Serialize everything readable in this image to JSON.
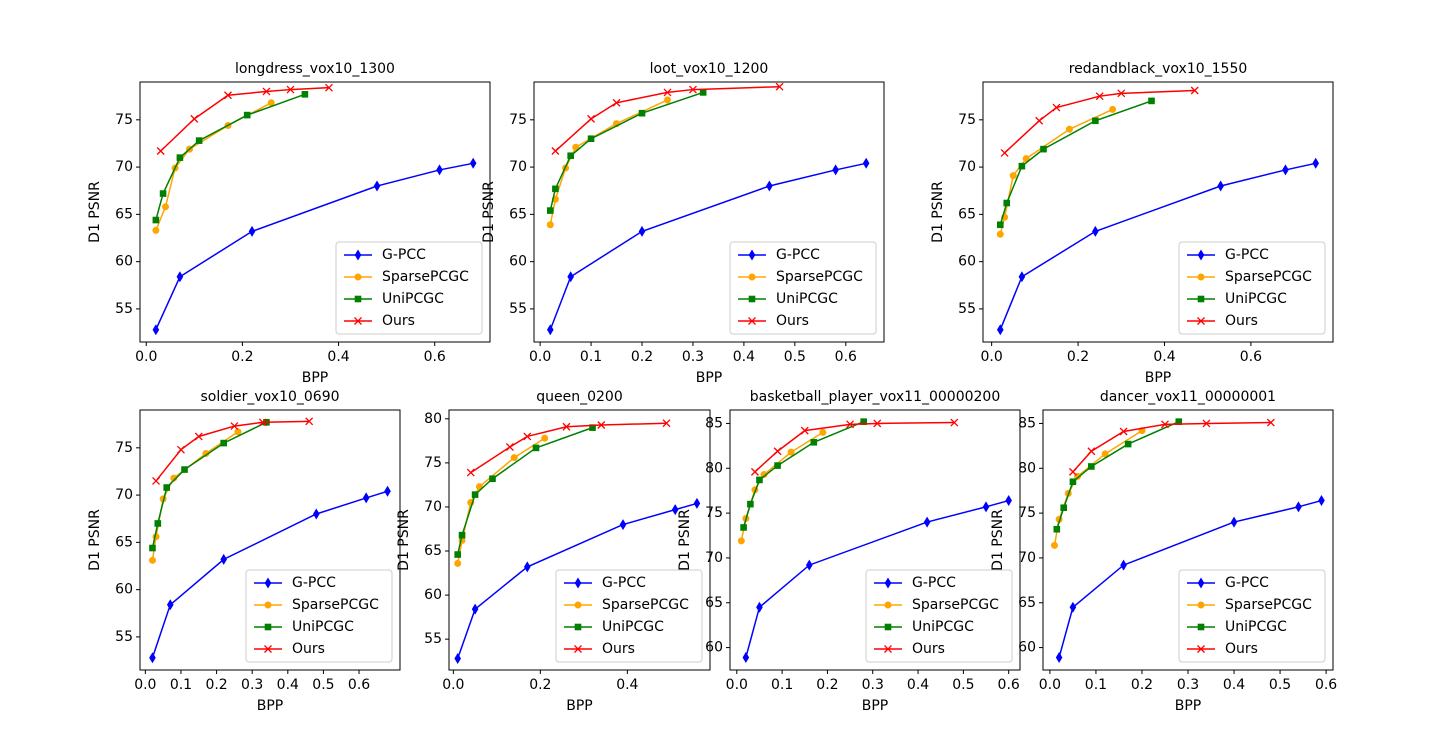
{
  "chart_data": [
    {
      "type": "line",
      "title": "longdress_vox10_1300",
      "x_label": "BPP",
      "y_label": "D1 PSNR",
      "xlim": [
        -0.013,
        0.715
      ],
      "xticks": [
        {
          "value": 0,
          "label": "0.0"
        },
        0.2,
        0.4,
        0.6
      ],
      "ylim": [
        51.5,
        79
      ],
      "yticks": [
        55,
        60,
        65,
        70,
        75
      ],
      "legend": "lower right",
      "series": [
        {
          "name": "G-PCC",
          "color": "#0000ff",
          "marker": "diamond",
          "x": [
            0.02,
            0.07,
            0.22,
            0.48,
            0.61,
            0.68
          ],
          "values": [
            52.8,
            58.4,
            63.2,
            68.0,
            69.7,
            70.4
          ]
        },
        {
          "name": "SparsePCGC",
          "color": "#ffa500",
          "marker": "circle",
          "x": [
            0.02,
            0.04,
            0.06,
            0.09,
            0.17,
            0.26
          ],
          "values": [
            63.3,
            65.8,
            69.9,
            71.9,
            74.4,
            76.8
          ]
        },
        {
          "name": "UniPCGC",
          "color": "#008000",
          "marker": "square",
          "x": [
            0.02,
            0.035,
            0.07,
            0.11,
            0.21,
            0.33
          ],
          "values": [
            64.4,
            67.2,
            71.0,
            72.8,
            75.5,
            77.7
          ]
        },
        {
          "name": "Ours",
          "color": "#ff0000",
          "marker": "x",
          "x": [
            0.03,
            0.1,
            0.17,
            0.25,
            0.3,
            0.38
          ],
          "values": [
            71.7,
            75.1,
            77.6,
            78.0,
            78.2,
            78.4
          ]
        }
      ]
    },
    {
      "type": "line",
      "title": "loot_vox10_1200",
      "x_label": "BPP",
      "y_label": "D1 PSNR",
      "xlim": [
        -0.012,
        0.675
      ],
      "xticks": [
        {
          "value": 0,
          "label": "0.0"
        },
        0.1,
        0.2,
        0.3,
        0.4,
        0.5,
        0.6
      ],
      "ylim": [
        51.5,
        79
      ],
      "yticks": [
        55,
        60,
        65,
        70,
        75
      ],
      "legend": "lower right",
      "series": [
        {
          "name": "G-PCC",
          "color": "#0000ff",
          "marker": "diamond",
          "x": [
            0.02,
            0.06,
            0.2,
            0.45,
            0.58,
            0.64
          ],
          "values": [
            52.8,
            58.4,
            63.2,
            68.0,
            69.7,
            70.4
          ]
        },
        {
          "name": "SparsePCGC",
          "color": "#ffa500",
          "marker": "circle",
          "x": [
            0.02,
            0.03,
            0.05,
            0.07,
            0.15,
            0.25
          ],
          "values": [
            63.9,
            66.6,
            69.9,
            72.1,
            74.6,
            77.1
          ]
        },
        {
          "name": "UniPCGC",
          "color": "#008000",
          "marker": "square",
          "x": [
            0.02,
            0.03,
            0.06,
            0.1,
            0.2,
            0.32
          ],
          "values": [
            65.4,
            67.7,
            71.2,
            73.0,
            75.7,
            77.9
          ]
        },
        {
          "name": "Ours",
          "color": "#ff0000",
          "marker": "x",
          "x": [
            0.03,
            0.1,
            0.15,
            0.25,
            0.3,
            0.47
          ],
          "values": [
            71.7,
            75.1,
            76.8,
            77.9,
            78.2,
            78.5
          ]
        }
      ]
    },
    {
      "type": "line",
      "title": "redandblack_vox10_1550",
      "x_label": "BPP",
      "y_label": "D1 PSNR",
      "xlim": [
        -0.02,
        0.79
      ],
      "xticks": [
        {
          "value": 0,
          "label": "0.0"
        },
        0.2,
        0.4,
        0.6
      ],
      "ylim": [
        51.5,
        79
      ],
      "yticks": [
        55,
        60,
        65,
        70,
        75
      ],
      "legend": "lower right",
      "series": [
        {
          "name": "G-PCC",
          "color": "#0000ff",
          "marker": "diamond",
          "x": [
            0.02,
            0.07,
            0.24,
            0.53,
            0.68,
            0.75
          ],
          "values": [
            52.8,
            58.4,
            63.2,
            68.0,
            69.7,
            70.4
          ]
        },
        {
          "name": "SparsePCGC",
          "color": "#ffa500",
          "marker": "circle",
          "x": [
            0.02,
            0.03,
            0.05,
            0.08,
            0.18,
            0.28
          ],
          "values": [
            62.9,
            64.7,
            69.1,
            70.9,
            74.0,
            76.1
          ]
        },
        {
          "name": "UniPCGC",
          "color": "#008000",
          "marker": "square",
          "x": [
            0.02,
            0.035,
            0.07,
            0.12,
            0.24,
            0.37
          ],
          "values": [
            63.9,
            66.2,
            70.1,
            71.9,
            74.9,
            77.0
          ]
        },
        {
          "name": "Ours",
          "color": "#ff0000",
          "marker": "x",
          "x": [
            0.03,
            0.11,
            0.15,
            0.25,
            0.3,
            0.47
          ],
          "values": [
            71.5,
            74.9,
            76.3,
            77.5,
            77.8,
            78.1
          ]
        }
      ]
    },
    {
      "type": "line",
      "title": "soldier_vox10_0690",
      "x_label": "BPP",
      "y_label": "D1 PSNR",
      "xlim": [
        -0.015,
        0.715
      ],
      "xticks": [
        {
          "value": 0,
          "label": "0.0"
        },
        0.1,
        0.2,
        0.3,
        0.4,
        0.5,
        0.6
      ],
      "ylim": [
        51.5,
        79
      ],
      "yticks": [
        55,
        60,
        65,
        70,
        75
      ],
      "legend": "lower right",
      "series": [
        {
          "name": "G-PCC",
          "color": "#0000ff",
          "marker": "diamond",
          "x": [
            0.02,
            0.07,
            0.22,
            0.48,
            0.62,
            0.68
          ],
          "values": [
            52.8,
            58.4,
            63.2,
            68.0,
            69.7,
            70.4
          ]
        },
        {
          "name": "SparsePCGC",
          "color": "#ffa500",
          "marker": "circle",
          "x": [
            0.02,
            0.03,
            0.05,
            0.08,
            0.17,
            0.26
          ],
          "values": [
            63.1,
            65.6,
            69.6,
            71.8,
            74.4,
            76.7
          ]
        },
        {
          "name": "UniPCGC",
          "color": "#008000",
          "marker": "square",
          "x": [
            0.02,
            0.035,
            0.06,
            0.11,
            0.22,
            0.34
          ],
          "values": [
            64.4,
            67.0,
            70.8,
            72.7,
            75.5,
            77.7
          ]
        },
        {
          "name": "Ours",
          "color": "#ff0000",
          "marker": "x",
          "x": [
            0.03,
            0.1,
            0.15,
            0.25,
            0.33,
            0.46
          ],
          "values": [
            71.5,
            74.8,
            76.2,
            77.3,
            77.7,
            77.8
          ]
        }
      ]
    },
    {
      "type": "line",
      "title": "queen_0200",
      "x_label": "BPP",
      "y_label": "D1 PSNR",
      "xlim": [
        -0.01,
        0.59
      ],
      "xticks": [
        {
          "value": 0,
          "label": "0.0"
        },
        0.2,
        0.4
      ],
      "ylim": [
        51.5,
        81
      ],
      "yticks": [
        55,
        60,
        65,
        70,
        75,
        80
      ],
      "legend": "lower right",
      "series": [
        {
          "name": "G-PCC",
          "color": "#0000ff",
          "marker": "diamond",
          "x": [
            0.01,
            0.05,
            0.17,
            0.39,
            0.51,
            0.56
          ],
          "values": [
            52.8,
            58.4,
            63.2,
            68.0,
            69.7,
            70.4
          ]
        },
        {
          "name": "SparsePCGC",
          "color": "#ffa500",
          "marker": "circle",
          "x": [
            0.01,
            0.02,
            0.04,
            0.06,
            0.14,
            0.21
          ],
          "values": [
            63.6,
            66.2,
            70.5,
            72.3,
            75.6,
            77.8
          ]
        },
        {
          "name": "UniPCGC",
          "color": "#008000",
          "marker": "square",
          "x": [
            0.01,
            0.02,
            0.05,
            0.09,
            0.19,
            0.32
          ],
          "values": [
            64.6,
            66.8,
            71.4,
            73.2,
            76.7,
            79.0
          ]
        },
        {
          "name": "Ours",
          "color": "#ff0000",
          "marker": "x",
          "x": [
            0.04,
            0.13,
            0.17,
            0.26,
            0.34,
            0.49
          ],
          "values": [
            73.9,
            76.8,
            78.0,
            79.1,
            79.3,
            79.5
          ]
        }
      ]
    },
    {
      "type": "line",
      "title": "basketball_player_vox11_00000200",
      "x_label": "BPP",
      "y_label": "D1 PSNR",
      "xlim": [
        -0.015,
        0.625
      ],
      "xticks": [
        {
          "value": 0,
          "label": "0.0"
        },
        0.1,
        0.2,
        0.3,
        0.4,
        0.5,
        0.6
      ],
      "ylim": [
        57.5,
        86.5
      ],
      "yticks": [
        60,
        65,
        70,
        75,
        80,
        85
      ],
      "legend": "lower right",
      "series": [
        {
          "name": "G-PCC",
          "color": "#0000ff",
          "marker": "diamond",
          "x": [
            0.02,
            0.05,
            0.16,
            0.42,
            0.55,
            0.6
          ],
          "values": [
            58.9,
            64.5,
            69.2,
            74.0,
            75.7,
            76.4
          ]
        },
        {
          "name": "SparsePCGC",
          "color": "#ffa500",
          "marker": "circle",
          "x": [
            0.01,
            0.02,
            0.04,
            0.06,
            0.12,
            0.19
          ],
          "values": [
            71.9,
            74.4,
            77.6,
            79.3,
            81.8,
            84.0
          ]
        },
        {
          "name": "UniPCGC",
          "color": "#008000",
          "marker": "square",
          "x": [
            0.015,
            0.03,
            0.05,
            0.09,
            0.17,
            0.28
          ],
          "values": [
            73.4,
            76.0,
            78.7,
            80.3,
            82.9,
            85.2
          ]
        },
        {
          "name": "Ours",
          "color": "#ff0000",
          "marker": "x",
          "x": [
            0.04,
            0.09,
            0.15,
            0.25,
            0.31,
            0.48
          ],
          "values": [
            79.6,
            81.9,
            84.2,
            84.9,
            85.0,
            85.1
          ]
        }
      ]
    },
    {
      "type": "line",
      "title": "dancer_vox11_00000001",
      "x_label": "BPP",
      "y_label": "D1 PSNR",
      "xlim": [
        -0.015,
        0.615
      ],
      "xticks": [
        {
          "value": 0,
          "label": "0.0"
        },
        0.1,
        0.2,
        0.3,
        0.4,
        0.5,
        0.6
      ],
      "ylim": [
        57.5,
        86.5
      ],
      "yticks": [
        60,
        65,
        70,
        75,
        80,
        85
      ],
      "legend": "lower right",
      "series": [
        {
          "name": "G-PCC",
          "color": "#0000ff",
          "marker": "diamond",
          "x": [
            0.02,
            0.05,
            0.16,
            0.4,
            0.54,
            0.59
          ],
          "values": [
            58.9,
            64.5,
            69.2,
            74.0,
            75.7,
            76.4
          ]
        },
        {
          "name": "SparsePCGC",
          "color": "#ffa500",
          "marker": "circle",
          "x": [
            0.01,
            0.02,
            0.04,
            0.06,
            0.12,
            0.2
          ],
          "values": [
            71.4,
            74.3,
            77.2,
            79.1,
            81.6,
            84.2
          ]
        },
        {
          "name": "UniPCGC",
          "color": "#008000",
          "marker": "square",
          "x": [
            0.015,
            0.03,
            0.05,
            0.09,
            0.17,
            0.28
          ],
          "values": [
            73.2,
            75.6,
            78.5,
            80.2,
            82.7,
            85.2
          ]
        },
        {
          "name": "Ours",
          "color": "#ff0000",
          "marker": "x",
          "x": [
            0.05,
            0.09,
            0.16,
            0.25,
            0.34,
            0.48
          ],
          "values": [
            79.6,
            81.9,
            84.1,
            84.9,
            85.0,
            85.1
          ]
        }
      ]
    }
  ]
}
